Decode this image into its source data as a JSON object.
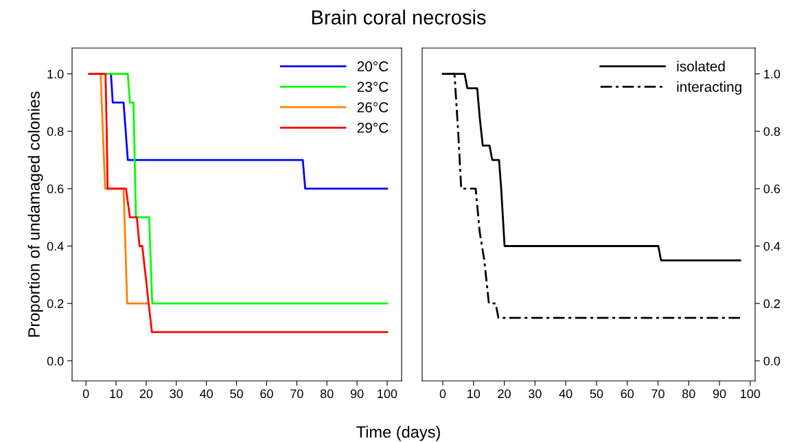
{
  "chart_data": [
    {
      "type": "line",
      "title": "Brain coral necrosis",
      "xlabel": "Time (days)",
      "ylabel": "Proportion of undamaged colonies",
      "xlim": [
        -4.6,
        104.8
      ],
      "ylim": [
        -0.07,
        1.09
      ],
      "xticks": [
        0,
        10,
        20,
        30,
        40,
        50,
        60,
        70,
        80,
        90,
        100
      ],
      "yticks": [
        {
          "value": 0,
          "label": "0.0"
        },
        {
          "value": 0.2,
          "label": "0.2"
        },
        {
          "value": 0.4,
          "label": "0.4"
        },
        {
          "value": 0.6,
          "label": "0.6"
        },
        {
          "value": 0.8,
          "label": "0.8"
        },
        {
          "value": 1,
          "label": "1.0"
        }
      ],
      "grid": false,
      "legend": "top right",
      "line_style": "solid",
      "series": [
        {
          "name": "20°C",
          "color": "#0000ff",
          "x": [
            8.3,
            8.9,
            9.5,
            12.5,
            13.2,
            13.9,
            72.0,
            72.8,
            100
          ],
          "values": [
            1.0,
            0.9,
            0.9,
            0.9,
            0.8,
            0.7,
            0.7,
            0.6,
            0.6
          ]
        },
        {
          "name": "23°C",
          "color": "#00ff00",
          "x": [
            1,
            13.9,
            14.6,
            15.8,
            16.2,
            16.6,
            21.0,
            21.5,
            22.0,
            100
          ],
          "values": [
            1.0,
            1.0,
            0.9,
            0.9,
            0.7,
            0.5,
            0.5,
            0.35,
            0.2,
            0.2
          ]
        },
        {
          "name": "26°C",
          "color": "#ff8000",
          "x": [
            4.9,
            5.6,
            6.4,
            12.5,
            13.1,
            13.7,
            20.7
          ],
          "values": [
            1.0,
            0.8,
            0.6,
            0.6,
            0.4,
            0.2,
            0.2
          ]
        },
        {
          "name": "29°C",
          "color": "#ff0000",
          "x": [
            1.1,
            6.5,
            6.9,
            7.2,
            13.3,
            14.6,
            16.9,
            17.8,
            18.7,
            20.3,
            21.9,
            100
          ],
          "values": [
            1.0,
            1.0,
            0.8,
            0.6,
            0.6,
            0.5,
            0.5,
            0.4,
            0.4,
            0.25,
            0.1,
            0.1
          ]
        }
      ]
    },
    {
      "type": "line",
      "xlim": [
        -6.7,
        101.6
      ],
      "ylim": [
        -0.07,
        1.09
      ],
      "xticks": [
        0,
        10,
        20,
        30,
        40,
        50,
        60,
        70,
        80,
        90,
        100
      ],
      "yticks": [
        {
          "value": 0,
          "label": "0.0"
        },
        {
          "value": 0.2,
          "label": "0.2"
        },
        {
          "value": 0.4,
          "label": "0.4"
        },
        {
          "value": 0.6,
          "label": "0.6"
        },
        {
          "value": 0.8,
          "label": "0.8"
        },
        {
          "value": 1,
          "label": "1.0"
        }
      ],
      "grid": false,
      "legend": "top right",
      "series": [
        {
          "name": "isolated",
          "color": "#000000",
          "line_style": "solid",
          "x": [
            0,
            7.1,
            8.0,
            11.2,
            12.0,
            13.0,
            15.2,
            16.1,
            18.3,
            19.0,
            20.1,
            70.1,
            71.0,
            96.7
          ],
          "values": [
            1.0,
            1.0,
            0.95,
            0.95,
            0.85,
            0.75,
            0.75,
            0.7,
            0.7,
            0.6,
            0.4,
            0.4,
            0.35,
            0.35
          ]
        },
        {
          "name": "interacting",
          "color": "#000000",
          "line_style": "dashdot",
          "x": [
            0,
            3.8,
            5.0,
            6.0,
            10.7,
            12.0,
            13.5,
            15.0,
            17.2,
            18.1,
            96.7
          ],
          "values": [
            1.0,
            1.0,
            0.8,
            0.6,
            0.6,
            0.45,
            0.35,
            0.2,
            0.2,
            0.15,
            0.15
          ]
        }
      ]
    }
  ]
}
